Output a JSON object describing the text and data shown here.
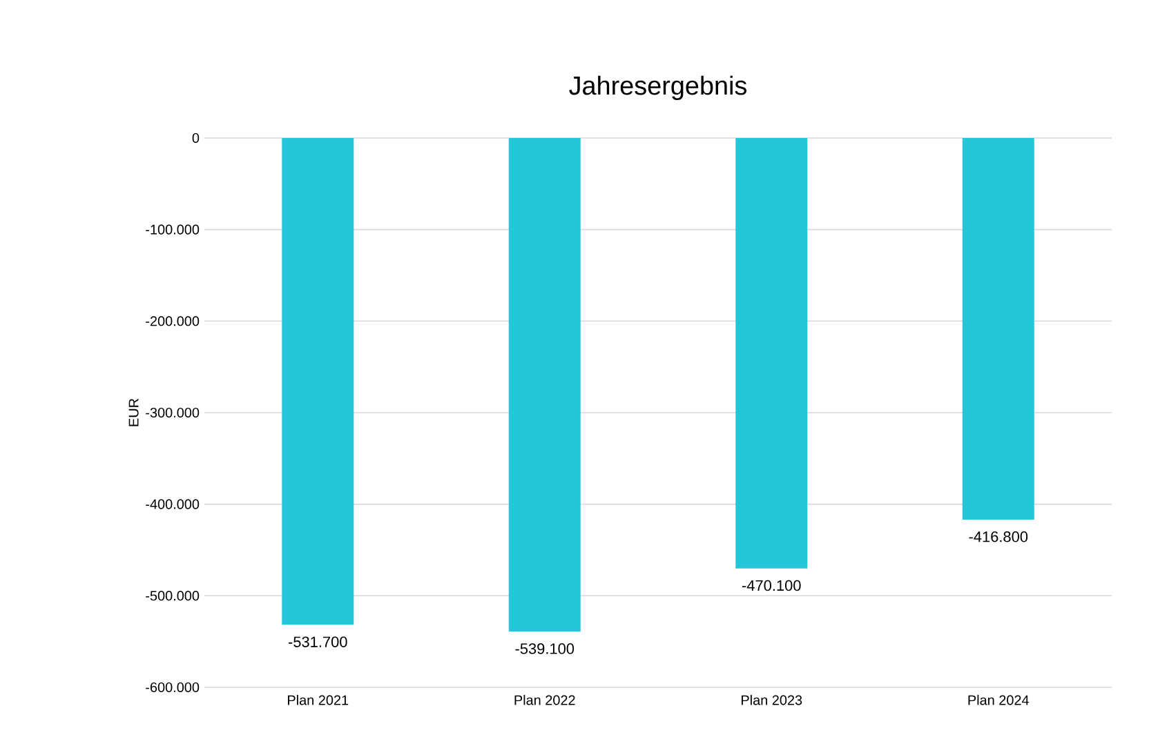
{
  "chart_data": {
    "type": "bar",
    "title": "Jahresergebnis",
    "ylabel": "EUR",
    "categories": [
      "Plan 2021",
      "Plan 2022",
      "Plan 2023",
      "Plan 2024"
    ],
    "values": [
      -531700,
      -539100,
      -470100,
      -416800
    ],
    "value_labels": [
      "-531.700",
      "-539.100",
      "-470.100",
      "-416.800"
    ],
    "color": "#26c6da",
    "ylim": [
      -600000,
      0
    ],
    "yticks": [
      {
        "value": -600000,
        "label": "-600.000"
      },
      {
        "value": -500000,
        "label": "-500.000"
      },
      {
        "value": -400000,
        "label": "-400.000"
      },
      {
        "value": -300000,
        "label": "-300.000"
      },
      {
        "value": -200000,
        "label": "-200.000"
      },
      {
        "value": -100000,
        "label": "-100.000"
      },
      0
    ],
    "grid": "y"
  }
}
